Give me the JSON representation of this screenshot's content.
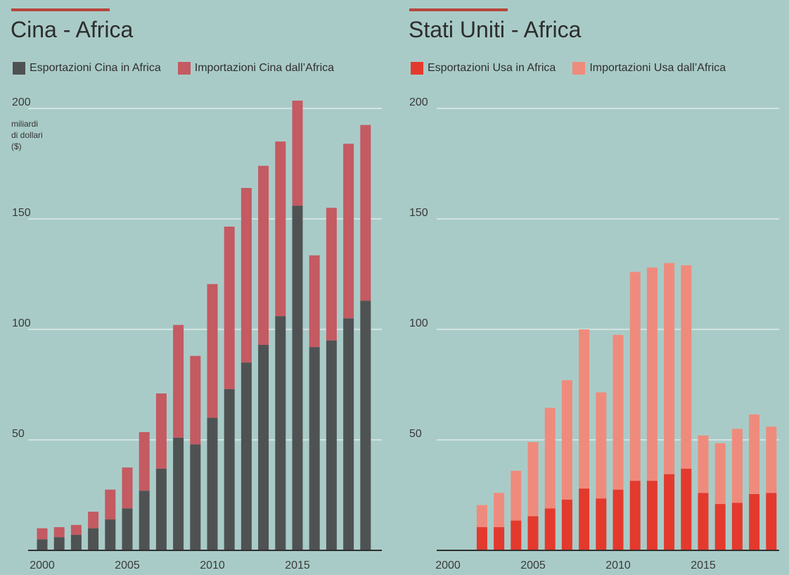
{
  "colors": {
    "background": "#a9cbc7",
    "accent": "#b6463d",
    "china_exports": "#4f5253",
    "china_imports": "#c45a62",
    "us_exports": "#e4392d",
    "us_imports": "#ef8b7c",
    "gridline": "#e9f1f0",
    "axis": "#2f2f2f"
  },
  "chart_data": [
    {
      "type": "bar",
      "stacked": true,
      "title": "Cina - Africa",
      "ylabel": "miliardi\ndi dollari\n($)",
      "ylim": [
        0,
        200
      ],
      "yticks": [
        50,
        100,
        150,
        200
      ],
      "xticks": [
        2000,
        2005,
        2010,
        2015
      ],
      "grid": true,
      "legend_position": "top",
      "categories": [
        2000,
        2001,
        2002,
        2003,
        2004,
        2005,
        2006,
        2007,
        2008,
        2009,
        2010,
        2011,
        2012,
        2013,
        2014,
        2015,
        2016,
        2017,
        2018,
        2019
      ],
      "series": [
        {
          "name": "Esportazioni Cina in Africa",
          "values": [
            5,
            6,
            7,
            10,
            14,
            19,
            27,
            37,
            51,
            48,
            60,
            73,
            85,
            93,
            106,
            156,
            92,
            95,
            105,
            113
          ]
        },
        {
          "name": "Importazioni Cina dall’Africa",
          "values": [
            5,
            4.5,
            4.5,
            7.5,
            13.5,
            18.5,
            26.5,
            34,
            51,
            40,
            60.5,
            73.5,
            79,
            81,
            79,
            47.5,
            41.5,
            60,
            79,
            79.5
          ]
        }
      ]
    },
    {
      "type": "bar",
      "stacked": true,
      "title": "Stati Uniti - Africa",
      "ylim": [
        0,
        200
      ],
      "yticks": [
        50,
        100,
        150,
        200
      ],
      "xticks": [
        2000,
        2005,
        2010,
        2015
      ],
      "grid": true,
      "legend_position": "top",
      "categories": [
        2000,
        2001,
        2002,
        2003,
        2004,
        2005,
        2006,
        2007,
        2008,
        2009,
        2010,
        2011,
        2012,
        2013,
        2014,
        2015,
        2016,
        2017,
        2018,
        2019
      ],
      "series": [
        {
          "name": "Esportazioni  Usa in Africa",
          "values": [
            0,
            0,
            10.5,
            10.5,
            13.5,
            15.5,
            19,
            23,
            28,
            23.5,
            27.5,
            31.5,
            31.5,
            34.5,
            37,
            26,
            21,
            21.5,
            25.5,
            26
          ]
        },
        {
          "name": "Importazioni Usa dall’Africa",
          "values": [
            0,
            0,
            10,
            15.5,
            22.5,
            33.5,
            45.5,
            54,
            72,
            48,
            70,
            94.5,
            96.5,
            95.5,
            92,
            26,
            27.5,
            33.5,
            36,
            30
          ]
        }
      ]
    }
  ]
}
